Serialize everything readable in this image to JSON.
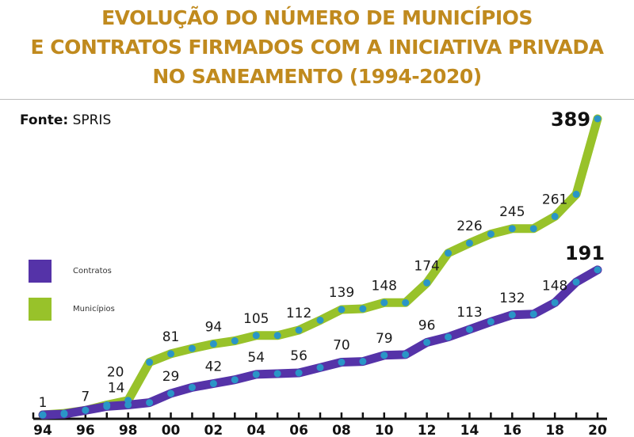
{
  "title_lines": [
    "EVOLUÇÃO DO NÚMERO DE MUNICÍPIOS",
    "E CONTRATOS FIRMADOS COM A INICIATIVA PRIVADA",
    "NO SANEAMENTO (1994-2020)"
  ],
  "source": {
    "label": "Fonte:",
    "value": "SPRIS"
  },
  "colors": {
    "title": "#c08a1e",
    "contratos": "#5533a8",
    "municipios": "#98c22a",
    "marker": "#2a95c7"
  },
  "legend": [
    {
      "name": "Contratos",
      "color": "#5533a8"
    },
    {
      "name": "Municípios",
      "color": "#98c22a"
    }
  ],
  "chart_data": {
    "type": "line",
    "title": "EVOLUÇÃO DO NÚMERO DE MUNICÍPIOS E CONTRATOS FIRMADOS COM A INICIATIVA PRIVADA NO SANEAMENTO (1994-2020)",
    "xlabel": "",
    "ylabel": "",
    "x": [
      1994,
      1995,
      1996,
      1997,
      1998,
      1999,
      2000,
      2001,
      2002,
      2003,
      2004,
      2005,
      2006,
      2007,
      2008,
      2009,
      2010,
      2011,
      2012,
      2013,
      2014,
      2015,
      2016,
      2017,
      2018,
      2019,
      2020
    ],
    "x_tick_labels": [
      "94",
      "96",
      "98",
      "00",
      "02",
      "04",
      "06",
      "08",
      "10",
      "12",
      "14",
      "16",
      "18",
      "20"
    ],
    "x_tick_years": [
      1994,
      1996,
      1998,
      2000,
      2002,
      2004,
      2006,
      2008,
      2010,
      2012,
      2014,
      2016,
      2018,
      2020
    ],
    "ylim": [
      0,
      389
    ],
    "grid": false,
    "legend_position": "left",
    "series": [
      {
        "name": "Municípios",
        "color": "#98c22a",
        "values": [
          1,
          3,
          7,
          14,
          20,
          70,
          81,
          88,
          94,
          98,
          105,
          105,
          112,
          125,
          139,
          140,
          148,
          148,
          174,
          213,
          226,
          238,
          245,
          245,
          261,
          290,
          389
        ],
        "labels": [
          {
            "year": 1994,
            "text": "1"
          },
          {
            "year": 1996,
            "text": "7"
          },
          {
            "year": 1998,
            "text": "20"
          },
          {
            "year": 2000,
            "text": "81"
          },
          {
            "year": 2002,
            "text": "94"
          },
          {
            "year": 2004,
            "text": "105"
          },
          {
            "year": 2006,
            "text": "112"
          },
          {
            "year": 2008,
            "text": "139"
          },
          {
            "year": 2010,
            "text": "148"
          },
          {
            "year": 2012,
            "text": "174"
          },
          {
            "year": 2014,
            "text": "226"
          },
          {
            "year": 2016,
            "text": "245"
          },
          {
            "year": 2018,
            "text": "261"
          },
          {
            "year": 2020,
            "text": "389",
            "emphasis": true
          }
        ]
      },
      {
        "name": "Contratos",
        "color": "#5533a8",
        "values": [
          1,
          2,
          7,
          12,
          14,
          17,
          29,
          37,
          42,
          47,
          54,
          55,
          56,
          63,
          70,
          71,
          79,
          80,
          96,
          103,
          113,
          123,
          132,
          133,
          148,
          175,
          191
        ],
        "labels": [
          {
            "year": 1998,
            "text": "14"
          },
          {
            "year": 2000,
            "text": "29"
          },
          {
            "year": 2002,
            "text": "42"
          },
          {
            "year": 2004,
            "text": "54"
          },
          {
            "year": 2006,
            "text": "56"
          },
          {
            "year": 2008,
            "text": "70"
          },
          {
            "year": 2010,
            "text": "79"
          },
          {
            "year": 2012,
            "text": "96"
          },
          {
            "year": 2014,
            "text": "113"
          },
          {
            "year": 2016,
            "text": "132"
          },
          {
            "year": 2018,
            "text": "148"
          },
          {
            "year": 2020,
            "text": "191",
            "emphasis": true
          }
        ]
      }
    ]
  }
}
